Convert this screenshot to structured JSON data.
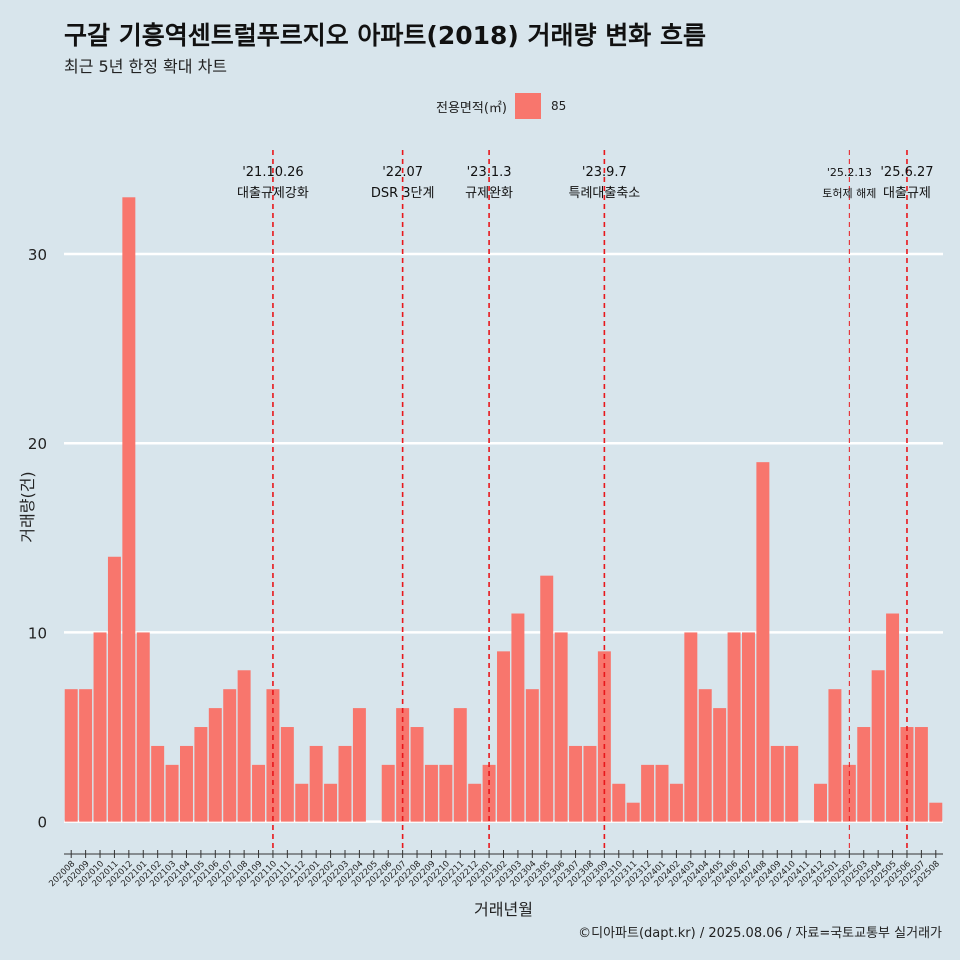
{
  "title": "구갈 기흥역센트럴푸르지오 아파트(2018) 거래량 변화 흐름",
  "subtitle": "최근 5년 한정 확대 차트",
  "caption": "©디아파트(dapt.kr) / 2025.08.06 / 자료=국토교통부 실거래가",
  "legend": {
    "title": "전용면적(㎡)",
    "entries": [
      "85"
    ]
  },
  "colors": {
    "bar": "#f8766d",
    "background": "#d8e5ec",
    "grid": "#ffffff",
    "vline": "#e8171b"
  },
  "chart_data": {
    "type": "bar",
    "xlabel": "거래년월",
    "ylabel": "거래량(건)",
    "ylim": [
      -1.5,
      35.5
    ],
    "yticks": [
      0,
      10,
      20,
      30
    ],
    "grid": true,
    "legend_position": "top",
    "categories": [
      "202008",
      "202009",
      "202010",
      "202011",
      "202012",
      "202101",
      "202102",
      "202103",
      "202104",
      "202105",
      "202106",
      "202107",
      "202108",
      "202109",
      "202110",
      "202111",
      "202112",
      "202201",
      "202202",
      "202203",
      "202204",
      "202205",
      "202206",
      "202207",
      "202208",
      "202209",
      "202210",
      "202211",
      "202212",
      "202301",
      "202302",
      "202303",
      "202304",
      "202305",
      "202306",
      "202307",
      "202308",
      "202309",
      "202310",
      "202311",
      "202312",
      "202401",
      "202402",
      "202403",
      "202404",
      "202405",
      "202406",
      "202407",
      "202408",
      "202409",
      "202410",
      "202411",
      "202412",
      "202501",
      "202502",
      "202503",
      "202504",
      "202505",
      "202506",
      "202507",
      "202508"
    ],
    "series": [
      {
        "name": "85",
        "values": [
          7,
          7,
          10,
          14,
          33,
          10,
          4,
          3,
          4,
          5,
          6,
          7,
          8,
          3,
          7,
          5,
          2,
          4,
          2,
          4,
          6,
          0,
          3,
          6,
          5,
          3,
          3,
          6,
          2,
          3,
          9,
          11,
          7,
          13,
          10,
          4,
          4,
          9,
          2,
          1,
          3,
          3,
          2,
          10,
          7,
          6,
          10,
          10,
          19,
          4,
          4,
          0,
          2,
          7,
          3,
          5,
          8,
          11,
          5,
          5,
          1
        ]
      }
    ],
    "events": [
      {
        "date": "202110",
        "line1": "'21.10.26",
        "line2": "대출규제강화",
        "style": "major"
      },
      {
        "date": "202207",
        "line1": "'22.07",
        "line2": "DSR 3단계",
        "style": "major"
      },
      {
        "date": "202301",
        "line1": "'23.1.3",
        "line2": "규제완화",
        "style": "major"
      },
      {
        "date": "202309",
        "line1": "'23.9.7",
        "line2": "특례대출축소",
        "style": "major"
      },
      {
        "date": "202502",
        "line1": "'25.2.13",
        "line2": "토허제 해제",
        "style": "minor"
      },
      {
        "date": "202506",
        "line1": "'25.6.27",
        "line2": "대출규제",
        "style": "major"
      }
    ]
  }
}
